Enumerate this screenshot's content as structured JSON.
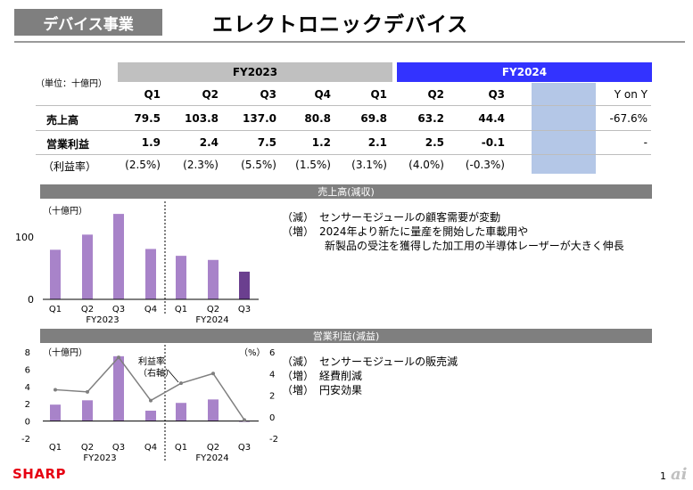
{
  "header": {
    "tag": "デバイス事業",
    "title": "エレクトロニックデバイス"
  },
  "table": {
    "unit": "（単位：十億円）",
    "years": [
      "FY2023",
      "FY2024"
    ],
    "quarters": [
      "Q1",
      "Q2",
      "Q3",
      "Q4",
      "Q1",
      "Q2",
      "Q3"
    ],
    "yoy_label": "Y on Y",
    "rows": [
      {
        "label": "売上高",
        "values": [
          "79.5",
          "103.8",
          "137.0",
          "80.8",
          "69.8",
          "63.2",
          "44.4"
        ],
        "yoy": "-67.6%"
      },
      {
        "label": "営業利益",
        "values": [
          "1.9",
          "2.4",
          "7.5",
          "1.2",
          "2.1",
          "2.5",
          "-0.1"
        ],
        "yoy": "-"
      },
      {
        "label": "（利益率）",
        "values": [
          "(2.5%)",
          "(2.3%)",
          "(5.5%)",
          "(1.5%)",
          "(3.1%)",
          "(4.0%)",
          "(-0.3%)"
        ],
        "yoy": ""
      }
    ],
    "colors": {
      "fy2023_header": "#c0c0c0",
      "fy2024_header": "#3333ff",
      "highlight": "#b4c7e7"
    }
  },
  "sales_section": {
    "title": "売上高(減収)",
    "notes": [
      "（減）　センサーモジュールの顧客需要が変動",
      "（増）　2024年より新たに量産を開始した車載用や",
      "　　　　新製品の受注を獲得した加工用の半導体レーザーが大きく伸長"
    ]
  },
  "profit_section": {
    "title": "営業利益(減益)",
    "notes": [
      "（減）　センサーモジュールの販売減",
      "（増）　経費削減",
      "（増）　円安効果"
    ]
  },
  "chart_data": [
    {
      "type": "bar",
      "unit_label": "（十億円）",
      "categories": [
        "Q1",
        "Q2",
        "Q3",
        "Q4",
        "Q1",
        "Q2",
        "Q3"
      ],
      "groups": [
        "FY2023",
        "FY2024"
      ],
      "values": [
        79.5,
        103.8,
        137.0,
        80.8,
        69.8,
        63.2,
        44.4
      ],
      "yticks": [
        "100",
        "0"
      ],
      "ylim": [
        0,
        140
      ],
      "colors": {
        "bar": "#a883c9",
        "last": "#6b3f8f"
      }
    },
    {
      "type": "bar",
      "unit_label": "（十億円）",
      "right_unit_label": "（%）",
      "categories": [
        "Q1",
        "Q2",
        "Q3",
        "Q4",
        "Q1",
        "Q2",
        "Q3"
      ],
      "groups": [
        "FY2023",
        "FY2024"
      ],
      "values": [
        1.9,
        2.4,
        7.5,
        1.2,
        2.1,
        2.5,
        -0.1
      ],
      "line_values": [
        2.5,
        2.3,
        5.5,
        1.5,
        3.1,
        4.0,
        -0.3
      ],
      "line_label": [
        "利益率",
        "（右軸）"
      ],
      "yticks_left": [
        "8",
        "6",
        "4",
        "2",
        "0",
        "-2"
      ],
      "yticks_right": [
        "6",
        "4",
        "2",
        "0",
        "-2"
      ],
      "ylim_left": [
        -2,
        8
      ],
      "ylim_right": [
        -2,
        6
      ],
      "colors": {
        "bar": "#a883c9",
        "line": "#7f7f7f"
      }
    }
  ],
  "footer": {
    "logo": "SHARP",
    "page": "1",
    "watermark": "ai"
  }
}
